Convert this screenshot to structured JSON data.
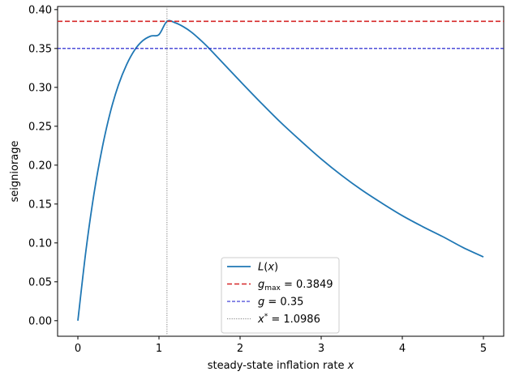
{
  "chart_data": {
    "type": "line",
    "xlabel": "steady-state inflation rate x",
    "ylabel": "seigniorage",
    "xlim": [
      -0.25,
      5.25
    ],
    "ylim": [
      -0.02,
      0.404
    ],
    "x_ticks": [
      0,
      1,
      2,
      3,
      4,
      5
    ],
    "x_tick_labels": [
      "0",
      "1",
      "2",
      "3",
      "4",
      "5"
    ],
    "y_ticks": [
      0.0,
      0.05,
      0.1,
      0.15,
      0.2,
      0.25,
      0.3,
      0.35,
      0.4
    ],
    "y_tick_labels": [
      "0.00",
      "0.05",
      "0.10",
      "0.15",
      "0.20",
      "0.25",
      "0.30",
      "0.35",
      "0.40"
    ],
    "grid": false,
    "legend_placement": "lower-center",
    "series": [
      {
        "name": "L(x)",
        "kind": "curve",
        "color": "#1f77b4",
        "x": [
          0.0,
          0.1,
          0.2,
          0.3,
          0.4,
          0.5,
          0.6,
          0.7,
          0.8,
          0.9,
          1.0,
          1.0986,
          1.2,
          1.3,
          1.4,
          1.5,
          1.6,
          1.8,
          2.0,
          2.25,
          2.5,
          2.75,
          3.0,
          3.25,
          3.5,
          3.75,
          4.0,
          4.25,
          4.5,
          4.75,
          5.0
        ],
        "y": [
          0.0,
          0.0905,
          0.164,
          0.222,
          0.268,
          0.303,
          0.329,
          0.348,
          0.36,
          0.366,
          0.3679,
          0.3849,
          0.383,
          0.378,
          0.371,
          0.362,
          0.352,
          0.33,
          0.308,
          0.281,
          0.255,
          0.231,
          0.208,
          0.187,
          0.168,
          0.151,
          0.135,
          0.121,
          0.108,
          0.094,
          0.082
        ]
      },
      {
        "name": "g_max = 0.3849",
        "kind": "hline",
        "color": "#d62728",
        "value": 0.3849,
        "legend_label": "g",
        "legend_sub": "max",
        "legend_rest": " = 0.3849"
      },
      {
        "name": "g = 0.35",
        "kind": "hline",
        "color": "#1414cc",
        "value": 0.35,
        "legend_label": "g",
        "legend_rest": " = 0.35"
      },
      {
        "name": "x* = 1.0986",
        "kind": "vline",
        "color": "#808080",
        "value": 1.0986,
        "legend_label": "x",
        "legend_sup": "*",
        "legend_rest": " = 1.0986"
      }
    ]
  }
}
